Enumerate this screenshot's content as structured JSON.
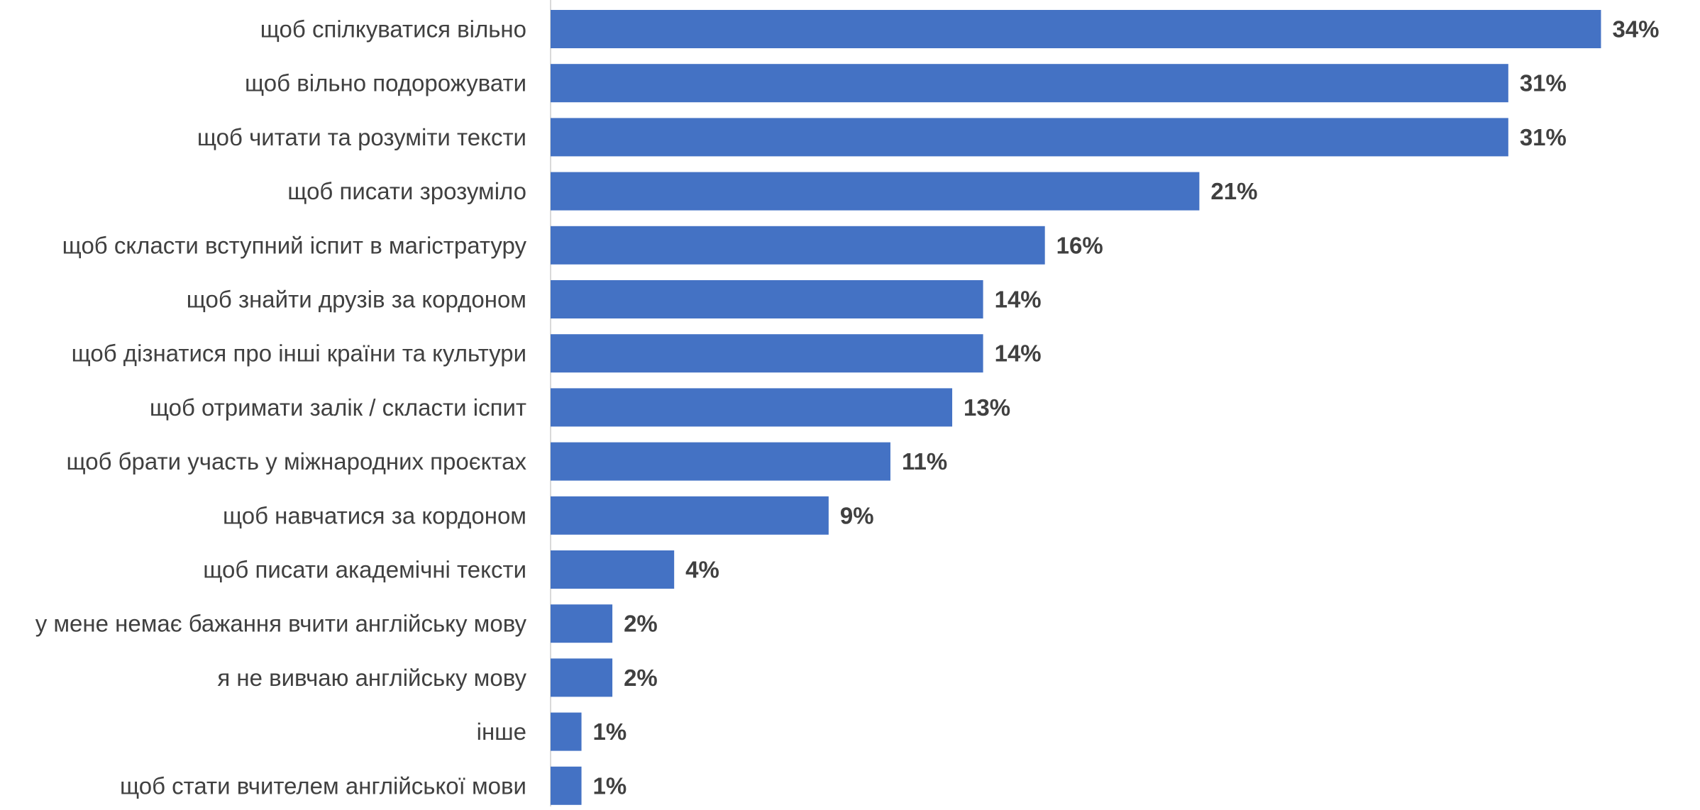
{
  "chart_data": {
    "type": "bar",
    "orientation": "horizontal",
    "title": "",
    "xlabel": "",
    "ylabel": "",
    "value_suffix": "%",
    "xlim": [
      0,
      35
    ],
    "grid": false,
    "legend": "none",
    "bar_color": "#4472C4",
    "categories": [
      "щоб спілкуватися вільно",
      "щоб вільно подорожувати",
      "щоб читати та розуміти тексти",
      "щоб писати зрозуміло",
      "щоб скласти вступний іспит в магістратуру",
      "щоб знайти друзів за кордоном",
      "щоб дізнатися про інші країни та культури",
      "щоб отримати залік / скласти іспит",
      "щоб брати участь у міжнародних проєктах",
      "щоб навчатися за кордоном",
      "щоб писати академічні тексти",
      "у мене немає бажання вчити англійську мову",
      "я не вивчаю англійську мову",
      "інше",
      "щоб стати вчителем англійської мови"
    ],
    "values": [
      34,
      31,
      31,
      21,
      16,
      14,
      14,
      13,
      11,
      9,
      4,
      2,
      2,
      1,
      1
    ],
    "value_labels": [
      "34%",
      "31%",
      "31%",
      "21%",
      "16%",
      "14%",
      "14%",
      "13%",
      "11%",
      "9%",
      "4%",
      "2%",
      "2%",
      "1%",
      "1%"
    ]
  }
}
